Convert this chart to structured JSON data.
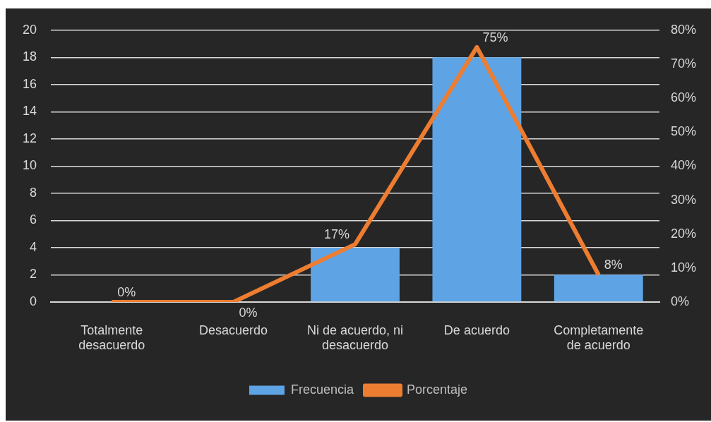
{
  "chart_data": {
    "type": "bar",
    "categories": [
      "Totalmente desacuerdo",
      "Desacuerdo",
      "Ni de acuerdo, ni desacuerdo",
      "De acuerdo",
      "Completamente de acuerdo"
    ],
    "series": [
      {
        "name": "Frecuencia",
        "color": "#5ea4e5",
        "values": [
          0,
          0,
          4,
          18,
          2
        ]
      },
      {
        "name": "Porcentaje",
        "type": "line",
        "axis": "y2",
        "color": "#ed7d31",
        "values": [
          0,
          0,
          17,
          75,
          8
        ],
        "value_labels": [
          "0%",
          "0%",
          "17%",
          "75%",
          "8%"
        ]
      }
    ],
    "ylim": [
      0,
      20
    ],
    "yticks": [
      0,
      2,
      4,
      6,
      8,
      10,
      12,
      14,
      16,
      18,
      20
    ],
    "y2lim": [
      0,
      80
    ],
    "y2ticks": [
      {
        "value": 0,
        "label": "0%"
      },
      {
        "value": 10,
        "label": "10%"
      },
      {
        "value": 20,
        "label": "20%"
      },
      {
        "value": 30,
        "label": "30%"
      },
      {
        "value": 40,
        "label": "40%"
      },
      {
        "value": 50,
        "label": "50%"
      },
      {
        "value": 60,
        "label": "60%"
      },
      {
        "value": 70,
        "label": "70%"
      },
      {
        "value": 80,
        "label": "80%"
      }
    ],
    "grid": "y",
    "legend": "bottom"
  }
}
